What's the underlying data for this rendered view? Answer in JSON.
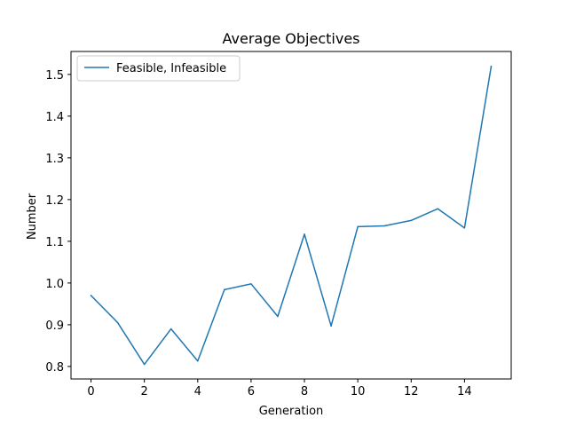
{
  "chart_data": {
    "type": "line",
    "title": "Average Objectives",
    "xlabel": "Generation",
    "ylabel": "Number",
    "x": [
      0,
      1,
      2,
      3,
      4,
      5,
      6,
      7,
      8,
      9,
      10,
      11,
      12,
      13,
      14,
      15
    ],
    "series": [
      {
        "name": "Feasible, Infeasible",
        "color": "#1f77b4",
        "values": [
          0.97,
          0.905,
          0.805,
          0.89,
          0.813,
          0.984,
          0.998,
          0.92,
          1.117,
          0.897,
          1.135,
          1.137,
          1.15,
          1.178,
          1.132,
          1.519
        ]
      }
    ],
    "xlim": [
      -0.75,
      15.75
    ],
    "ylim": [
      0.77,
      1.555
    ],
    "xticks": [
      0,
      2,
      4,
      6,
      8,
      10,
      12,
      14
    ],
    "xtick_labels": [
      "0",
      "2",
      "4",
      "6",
      "8",
      "10",
      "12",
      "14"
    ],
    "yticks": [
      0.8,
      0.9,
      1.0,
      1.1,
      1.2,
      1.3,
      1.4,
      1.5
    ],
    "ytick_labels": [
      "0.8",
      "0.9",
      "1.0",
      "1.1",
      "1.2",
      "1.3",
      "1.4",
      "1.5"
    ],
    "grid": false,
    "legend_position": "top-left"
  }
}
